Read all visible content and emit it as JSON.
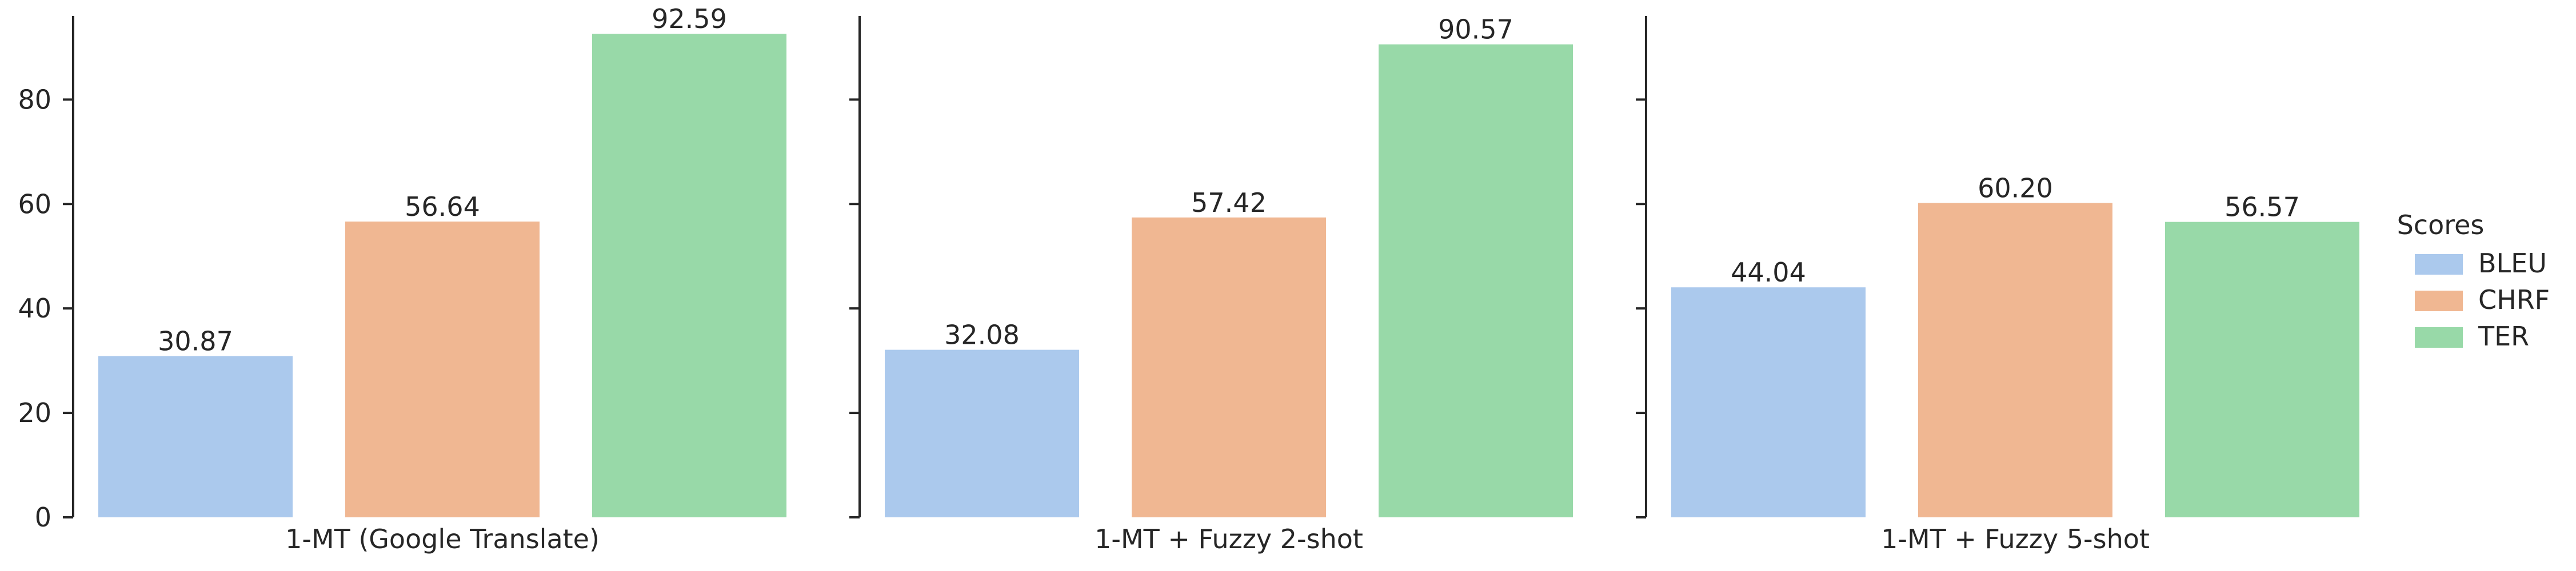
{
  "chart_data": {
    "type": "bar",
    "subplots": [
      {
        "xlabel": "1-MT (Google Translate)",
        "series": [
          {
            "name": "BLEU",
            "value": 30.87,
            "label": "30.87"
          },
          {
            "name": "CHRF",
            "value": 56.64,
            "label": "56.64"
          },
          {
            "name": "TER",
            "value": 92.59,
            "label": "92.59"
          }
        ]
      },
      {
        "xlabel": "1-MT + Fuzzy 2-shot",
        "series": [
          {
            "name": "BLEU",
            "value": 32.08,
            "label": "32.08"
          },
          {
            "name": "CHRF",
            "value": 57.42,
            "label": "57.42"
          },
          {
            "name": "TER",
            "value": 90.57,
            "label": "90.57"
          }
        ]
      },
      {
        "xlabel": "1-MT + Fuzzy 5-shot",
        "series": [
          {
            "name": "BLEU",
            "value": 44.04,
            "label": "44.04"
          },
          {
            "name": "CHRF",
            "value": 60.2,
            "label": "60.20"
          },
          {
            "name": "TER",
            "value": 56.57,
            "label": "56.57"
          }
        ]
      }
    ],
    "ylim": [
      0,
      96
    ],
    "yticks": [
      "0",
      "20",
      "40",
      "60",
      "80"
    ],
    "shared_y": true,
    "grid": false,
    "legend": {
      "title": "Scores",
      "placement": "right",
      "entries": [
        {
          "name": "BLEU",
          "color": "#abc9ed"
        },
        {
          "name": "CHRF",
          "color": "#f0b792"
        },
        {
          "name": "TER",
          "color": "#98d9a8"
        }
      ]
    }
  }
}
